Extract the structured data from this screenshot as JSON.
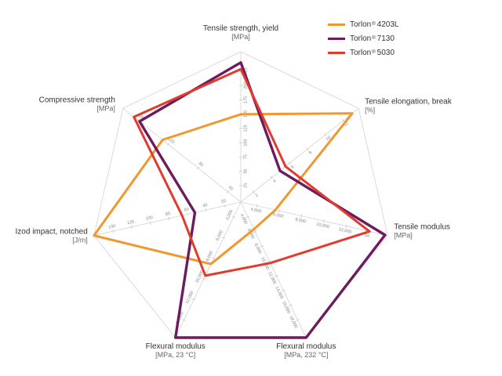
{
  "chart_data": {
    "type": "radar",
    "axes": [
      {
        "title": "Tensile strength, yield",
        "unit": "[MPa]",
        "ticks": [
          "25",
          "50",
          "75",
          "100",
          "125",
          "150",
          "175",
          "200",
          "225"
        ],
        "max": 250,
        "line": 1
      },
      {
        "title": "Tensile elongation, break",
        "unit": "[%]",
        "ticks": [
          "2",
          "4",
          "6",
          "8",
          "10",
          "12"
        ],
        "max": 15,
        "line": 1
      },
      {
        "title": "Tensile modulus",
        "unit": "[MPa]",
        "ticks": [
          "4,000",
          "6,000",
          "8,000",
          "10,000",
          "12,000",
          "14,"
        ],
        "max": 17000,
        "line": 1
      },
      {
        "title": "Flexural modulus",
        "unit": "[MPa, 232 °C]",
        "ticks": [
          "4,000",
          "6,000",
          "8,000",
          "10,000",
          "12,000",
          "14,000",
          "16,000",
          "18,000"
        ],
        "max": 20000,
        "line": 2
      },
      {
        "title": "Flexural modulus",
        "unit": "[MPa, 23 °C]",
        "ticks": [
          "4,000",
          "6,000",
          "8,000",
          "10,000",
          "12,000",
          "14,000"
        ],
        "max": 17500,
        "line": 2
      },
      {
        "title": "Izod impact, notched",
        "unit": "[J/m]",
        "ticks": [
          "20",
          "40",
          "60",
          "80",
          "100",
          "120",
          "140"
        ],
        "max": 160,
        "line": 1
      },
      {
        "title": "Compressive strength",
        "unit": "[MPa]",
        "ticks": [
          "40",
          "80",
          "120",
          "160"
        ],
        "max": 250,
        "line": 2
      }
    ],
    "series": [
      {
        "name": "4203L",
        "color": "#f0982f",
        "values": [
          146,
          14.2,
          4000,
          4000,
          8000,
          160,
          166
        ]
      },
      {
        "name": "7130",
        "color": "#6e1b5e",
        "values": [
          232,
          5.0,
          16700,
          20000,
          17500,
          50,
          215
        ]
      },
      {
        "name": "5030",
        "color": "#e23b2e",
        "values": [
          221,
          5.7,
          14900,
          9000,
          9500,
          64,
          227
        ]
      }
    ]
  },
  "legend": {
    "brand": "Torlon",
    "reg": "®"
  }
}
